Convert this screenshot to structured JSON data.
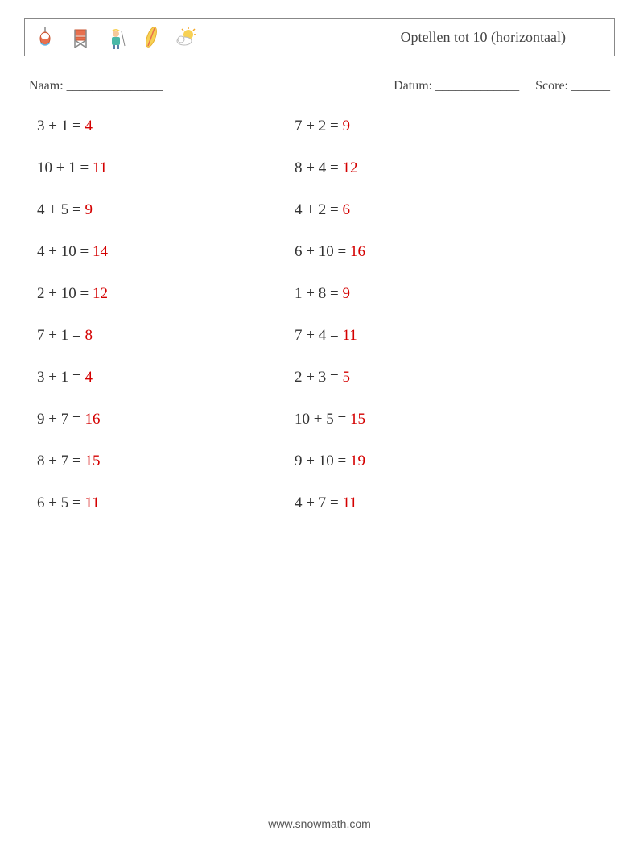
{
  "header": {
    "title": "Optellen tot 10 (horizontaal)",
    "icons": [
      "fishing-float-icon",
      "director-chair-icon",
      "fisherman-icon",
      "surfboard-icon",
      "sun-cloud-icon"
    ]
  },
  "info": {
    "name_label": "Naam: _______________",
    "date_label": "Datum: _____________",
    "score_label": "Score: ______"
  },
  "colors": {
    "text": "#333333",
    "answer": "#d40000",
    "border": "#888888",
    "background": "#ffffff",
    "icon_orange": "#f5a623",
    "icon_blue": "#5bb5e8",
    "icon_teal": "#4ab8a8",
    "icon_yellow": "#f7d154",
    "icon_red": "#e8704f"
  },
  "typography": {
    "title_fontsize": 18,
    "problem_fontsize": 19,
    "info_fontsize": 16,
    "footer_fontsize": 14
  },
  "problems": {
    "col1": [
      {
        "a": 3,
        "b": 1,
        "ans": 4
      },
      {
        "a": 10,
        "b": 1,
        "ans": 11
      },
      {
        "a": 4,
        "b": 5,
        "ans": 9
      },
      {
        "a": 4,
        "b": 10,
        "ans": 14
      },
      {
        "a": 2,
        "b": 10,
        "ans": 12
      },
      {
        "a": 7,
        "b": 1,
        "ans": 8
      },
      {
        "a": 3,
        "b": 1,
        "ans": 4
      },
      {
        "a": 9,
        "b": 7,
        "ans": 16
      },
      {
        "a": 8,
        "b": 7,
        "ans": 15
      },
      {
        "a": 6,
        "b": 5,
        "ans": 11
      }
    ],
    "col2": [
      {
        "a": 7,
        "b": 2,
        "ans": 9
      },
      {
        "a": 8,
        "b": 4,
        "ans": 12
      },
      {
        "a": 4,
        "b": 2,
        "ans": 6
      },
      {
        "a": 6,
        "b": 10,
        "ans": 16
      },
      {
        "a": 1,
        "b": 8,
        "ans": 9
      },
      {
        "a": 7,
        "b": 4,
        "ans": 11
      },
      {
        "a": 2,
        "b": 3,
        "ans": 5
      },
      {
        "a": 10,
        "b": 5,
        "ans": 15
      },
      {
        "a": 9,
        "b": 10,
        "ans": 19
      },
      {
        "a": 4,
        "b": 7,
        "ans": 11
      }
    ]
  },
  "footer": {
    "text": "www.snowmath.com"
  }
}
